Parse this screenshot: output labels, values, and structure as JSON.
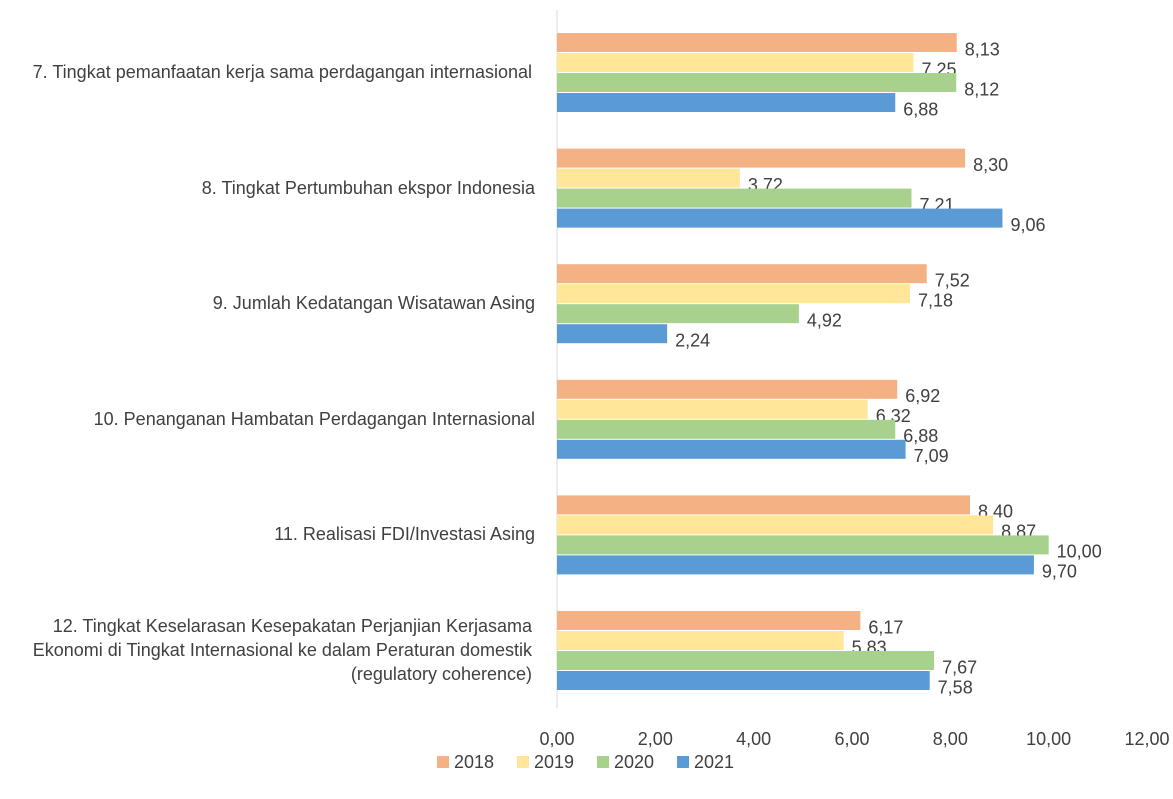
{
  "chart_data": {
    "type": "bar",
    "orientation": "horizontal",
    "categories": [
      "7. Tingkat pemanfaatan kerja sama perdagangan internasional",
      "8. Tingkat Pertumbuhan ekspor Indonesia",
      "9. Jumlah Kedatangan Wisatawan Asing",
      "10. Penanganan Hambatan Perdagangan Internasional",
      "11. Realisasi FDI/Investasi Asing",
      "12. Tingkat Keselarasan Kesepakatan Perjanjian Kerjasama Ekonomi di Tingkat Internasional ke dalam Peraturan domestik (regulatory coherence)"
    ],
    "series": [
      {
        "name": "2018",
        "color": "#f4b183",
        "values": [
          8.13,
          8.3,
          7.52,
          6.92,
          8.4,
          6.17
        ],
        "value_labels": [
          "8,13",
          "8,30",
          "7,52",
          "6,92",
          "8,40",
          "6,17"
        ]
      },
      {
        "name": "2019",
        "color": "#ffe699",
        "values": [
          7.25,
          3.72,
          7.18,
          6.32,
          8.87,
          5.83
        ],
        "value_labels": [
          "7,25",
          "3,72",
          "7,18",
          "6,32",
          "8,87",
          "5,83"
        ]
      },
      {
        "name": "2020",
        "color": "#a9d18e",
        "values": [
          8.12,
          7.21,
          4.92,
          6.88,
          10.0,
          7.67
        ],
        "value_labels": [
          "8,12",
          "7,21",
          "4,92",
          "6,88",
          "10,00",
          "7,67"
        ]
      },
      {
        "name": "2021",
        "color": "#5b9bd5",
        "values": [
          6.88,
          9.06,
          2.24,
          7.09,
          9.7,
          7.58
        ],
        "value_labels": [
          "6,88",
          "9,06",
          "2,24",
          "7,09",
          "9,70",
          "7,58"
        ]
      }
    ],
    "xlim": [
      0,
      12
    ],
    "xticks": [
      {
        "value": 0,
        "label": "0,00"
      },
      {
        "value": 2,
        "label": "2,00"
      },
      {
        "value": 4,
        "label": "4,00"
      },
      {
        "value": 6,
        "label": "6,00"
      },
      {
        "value": 8,
        "label": "8,00"
      },
      {
        "value": 10,
        "label": "10,00"
      },
      {
        "value": 12,
        "label": "12,00"
      }
    ],
    "legend": "bottom",
    "grid": false
  }
}
